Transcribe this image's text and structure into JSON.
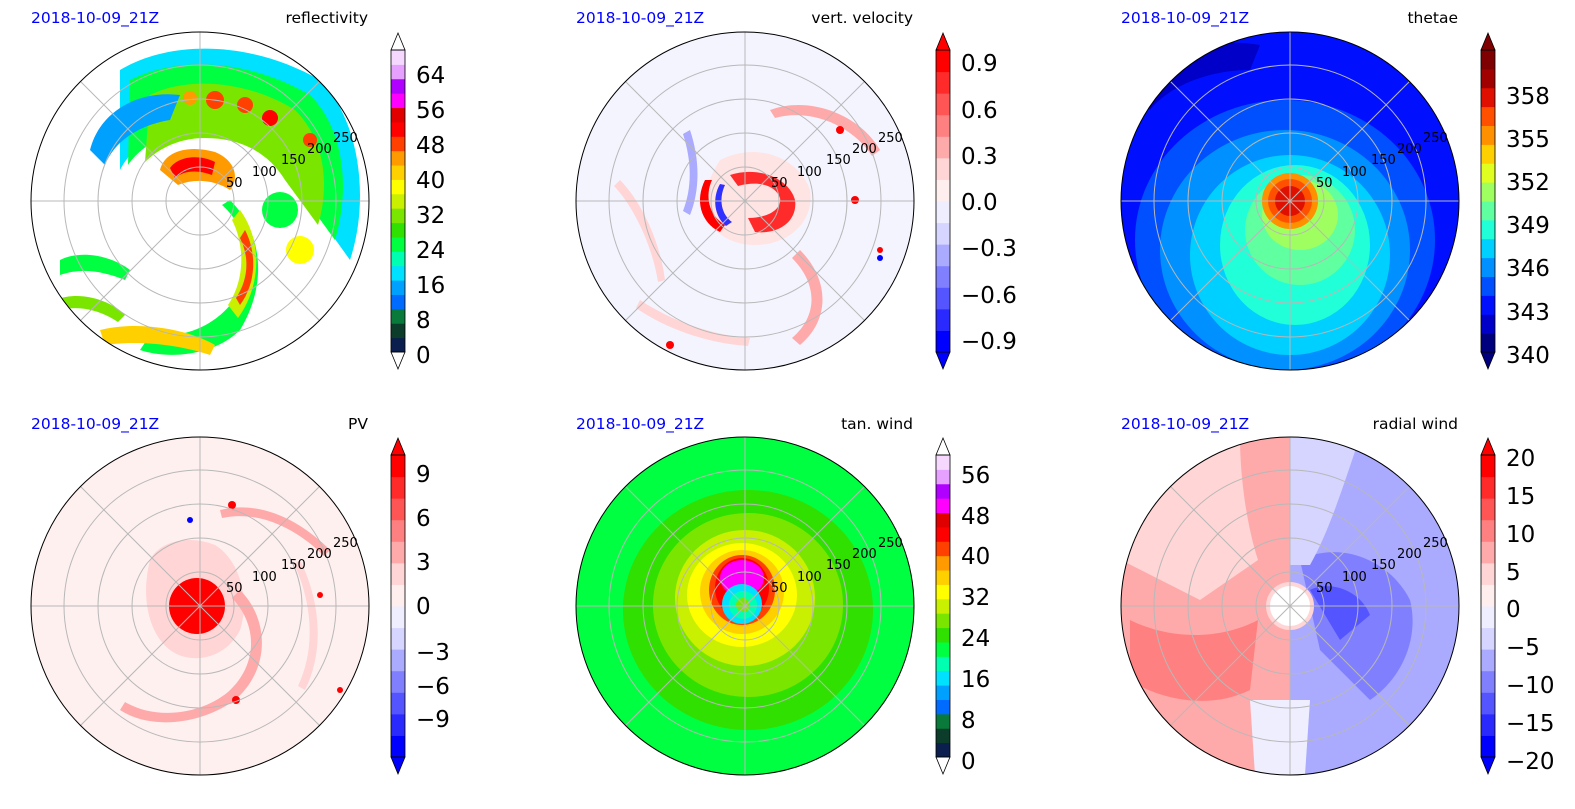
{
  "chart_data": [
    {
      "type": "heatmap",
      "projection": "polar",
      "date_label": "2018-10-09_21Z",
      "title": "reflectivity",
      "radial_ticks": [
        "50",
        "100",
        "150",
        "200",
        "250"
      ],
      "grid": true,
      "colorbar": {
        "ticks": [
          "0",
          "8",
          "16",
          "24",
          "32",
          "40",
          "48",
          "56",
          "64"
        ],
        "vmin": 0,
        "vmax": 70,
        "extend": "both",
        "colormap": "nws_reflectivity"
      },
      "field": "Hurricane reflectivity: spiral rainbands wrapping cyclonically around an eye north of center; strongest echoes 45-55 in the northern eyewall and outer bands"
    },
    {
      "type": "heatmap",
      "projection": "polar",
      "date_label": "2018-10-09_21Z",
      "title": "vert. velocity",
      "radial_ticks": [
        "50",
        "100",
        "150",
        "200",
        "250"
      ],
      "grid": true,
      "colorbar": {
        "ticks": [
          "−0.9",
          "−0.6",
          "−0.3",
          "0.0",
          "0.3",
          "0.6",
          "0.9"
        ],
        "vmin": -1.0,
        "vmax": 1.0,
        "extend": "both",
        "colormap": "bwr"
      },
      "field": "Vertical velocity near 0 everywhere except a red updraft ring around the eye and thin spiral filaments"
    },
    {
      "type": "heatmap",
      "projection": "polar",
      "date_label": "2018-10-09_21Z",
      "title": "thetae",
      "radial_ticks": [
        "50",
        "100",
        "150",
        "200",
        "250"
      ],
      "grid": true,
      "colorbar": {
        "ticks": [
          "340",
          "343",
          "346",
          "349",
          "352",
          "355",
          "358"
        ],
        "vmin": 340,
        "vmax": 361,
        "extend": "both",
        "colormap": "jet"
      },
      "field": "Warm core of ~357-359 at the center, greens/yellows toward the south, blues (~341-345) on the north and edges"
    },
    {
      "type": "heatmap",
      "projection": "polar",
      "date_label": "2018-10-09_21Z",
      "title": "PV",
      "radial_ticks": [
        "50",
        "100",
        "150",
        "200",
        "250"
      ],
      "grid": true,
      "colorbar": {
        "ticks": [
          "−9",
          "−6",
          "−3",
          "0",
          "3",
          "6",
          "9"
        ],
        "vmin": -10.5,
        "vmax": 10.5,
        "extend": "both",
        "colormap": "bwr"
      },
      "field": "Large positive PV core (>9) at center, weakly positive background, small positive/negative dipoles along spiral bands"
    },
    {
      "type": "heatmap",
      "projection": "polar",
      "date_label": "2018-10-09_21Z",
      "title": "tan. wind",
      "radial_ticks": [
        "50",
        "100",
        "150",
        "200",
        "250"
      ],
      "grid": true,
      "colorbar": {
        "ticks": [
          "0",
          "8",
          "16",
          "24",
          "32",
          "40",
          "48",
          "56"
        ],
        "vmin": 0,
        "vmax": 60,
        "extend": "both",
        "colormap": "nws_reflectivity"
      },
      "field": "Tangential wind maximum (~40-50) in a ring of radius ~30, calm eye (~16) at center, decaying outward to ~20"
    },
    {
      "type": "heatmap",
      "projection": "polar",
      "date_label": "2018-10-09_21Z",
      "title": "radial wind",
      "radial_ticks": [
        "50",
        "100",
        "150",
        "200",
        "250"
      ],
      "grid": true,
      "colorbar": {
        "ticks": [
          "−20",
          "−15",
          "−10",
          "−5",
          "0",
          "5",
          "10",
          "15",
          "20"
        ],
        "vmin": -20,
        "vmax": 20,
        "extend": "both",
        "colormap": "bwr"
      },
      "field": "West half positive (~+8) and east half negative (~-8), a near-zero ring around the eye"
    }
  ],
  "colors": {
    "date_label": "#0000ff",
    "nws_reflectivity": [
      "#0a1f4d",
      "#0b3d2a",
      "#0a7a3a",
      "#006cff",
      "#00a0ff",
      "#00e0ff",
      "#00ffb0",
      "#00ff40",
      "#30e000",
      "#7ae600",
      "#c8f000",
      "#ffff00",
      "#ffd000",
      "#ff9a00",
      "#ff4000",
      "#ff0000",
      "#e00000",
      "#ff00ff",
      "#b000ff",
      "#e6a0ff",
      "#f6d8ff"
    ],
    "jet": [
      "#00007f",
      "#0000c8",
      "#0010ff",
      "#0050ff",
      "#0090ff",
      "#00d0ff",
      "#20ffd8",
      "#60ffa0",
      "#a0ff60",
      "#e0ff20",
      "#ffd000",
      "#ff9000",
      "#ff5000",
      "#e01000",
      "#a00000",
      "#7f0000"
    ],
    "bwr": [
      "#0000ff",
      "#2a2aff",
      "#5555ff",
      "#8080ff",
      "#aaaaff",
      "#d5d5ff",
      "#eeeeff",
      "#ffeeee",
      "#ffd5d5",
      "#ffaaaa",
      "#ff8080",
      "#ff5555",
      "#ff2a2a",
      "#ff0000"
    ]
  }
}
